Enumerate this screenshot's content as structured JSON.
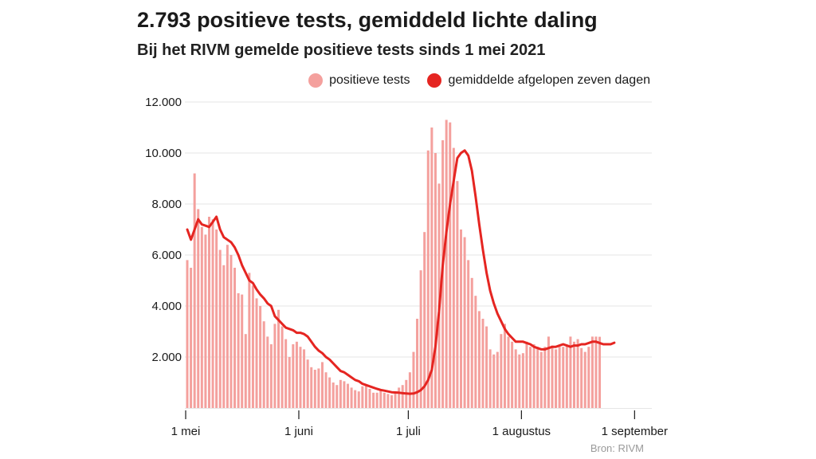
{
  "chart_data": {
    "type": "bar",
    "title": "2.793 positieve tests, gemiddeld lichte daling",
    "subtitle": "Bij het RIVM gemelde positieve tests sinds 1 mei 2021",
    "source": "Bron: RIVM",
    "ylim": [
      0,
      12000
    ],
    "yticks": [
      {
        "value": 2000,
        "label": "2.000"
      },
      {
        "value": 4000,
        "label": "4.000"
      },
      {
        "value": 6000,
        "label": "6.000"
      },
      {
        "value": 8000,
        "label": "8.000"
      },
      {
        "value": 10000,
        "label": "10.000"
      },
      {
        "value": 12000,
        "label": "12.000"
      }
    ],
    "xticks": [
      {
        "date": "2021-05-01",
        "label": "1 mei"
      },
      {
        "date": "2021-06-01",
        "label": "1 juni"
      },
      {
        "date": "2021-07-01",
        "label": "1 juli"
      },
      {
        "date": "2021-08-01",
        "label": "1 augustus"
      },
      {
        "date": "2021-09-01",
        "label": "1 september"
      }
    ],
    "start_date": "2021-05-01",
    "grid": true,
    "legend_position": "top-right",
    "series": [
      {
        "name": "positieve tests",
        "kind": "bar",
        "color": "#f4a09d",
        "values": [
          5800,
          5500,
          9200,
          7800,
          7100,
          6800,
          7500,
          7400,
          7000,
          6200,
          5600,
          6400,
          6000,
          5500,
          4500,
          4450,
          2900,
          5300,
          4800,
          4300,
          4000,
          3400,
          2800,
          2500,
          3300,
          3850,
          3200,
          2700,
          2000,
          2500,
          2600,
          2400,
          2300,
          1900,
          1600,
          1500,
          1550,
          1800,
          1400,
          1200,
          1000,
          900,
          1100,
          1050,
          950,
          800,
          700,
          650,
          850,
          900,
          750,
          600,
          600,
          700,
          600,
          550,
          500,
          650,
          800,
          900,
          1100,
          1400,
          2200,
          3500,
          5400,
          6900,
          10100,
          11000,
          10000,
          8800,
          10500,
          11300,
          11200,
          10200,
          8900,
          7000,
          6700,
          5800,
          5100,
          4400,
          3800,
          3500,
          3200,
          2300,
          2100,
          2200,
          2900,
          3300,
          2800,
          2600,
          2300,
          2100,
          2150,
          2600,
          2400,
          2500,
          2400,
          2200,
          2400,
          2800,
          2450,
          2300,
          2400,
          2400,
          2450,
          2800,
          2600,
          2700,
          2350,
          2200,
          2400,
          2800,
          2800,
          2793
        ]
      },
      {
        "name": "gemiddelde afgelopen zeven dagen",
        "kind": "line",
        "color": "#e52521",
        "values": [
          7000,
          6600,
          7000,
          7400,
          7200,
          7150,
          7100,
          7300,
          7500,
          7000,
          6700,
          6600,
          6500,
          6300,
          6000,
          5600,
          5300,
          5000,
          4900,
          4650,
          4450,
          4300,
          4100,
          4000,
          3600,
          3450,
          3300,
          3150,
          3100,
          3050,
          2950,
          2950,
          2900,
          2800,
          2600,
          2400,
          2250,
          2150,
          2000,
          1900,
          1750,
          1600,
          1450,
          1400,
          1300,
          1200,
          1100,
          1050,
          950,
          900,
          850,
          800,
          750,
          710,
          680,
          650,
          620,
          610,
          600,
          580,
          570,
          560,
          570,
          620,
          700,
          850,
          1100,
          1500,
          2400,
          3800,
          5600,
          6900,
          8000,
          8900,
          9800,
          10000,
          10100,
          9900,
          9300,
          8300,
          7200,
          6200,
          5300,
          4600,
          4100,
          3700,
          3400,
          3100,
          2900,
          2750,
          2600,
          2600,
          2600,
          2550,
          2500,
          2400,
          2350,
          2300,
          2300,
          2350,
          2400,
          2400,
          2450,
          2500,
          2450,
          2400,
          2450,
          2450,
          2500,
          2500,
          2550,
          2600,
          2600,
          2550,
          2500,
          2500,
          2500,
          2560
        ]
      }
    ]
  }
}
